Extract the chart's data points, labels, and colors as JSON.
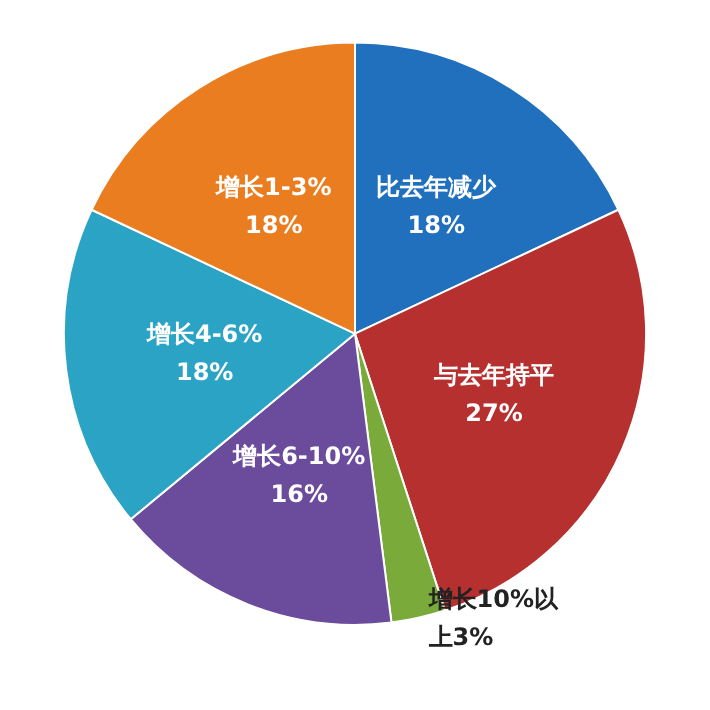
{
  "chart_data": {
    "type": "pie",
    "categories": [
      "比去年减少",
      "与去年持平",
      "增长10%以上",
      "增长6-10%",
      "增长4-6%",
      "增长1-3%"
    ],
    "values": [
      18,
      27,
      3,
      16,
      18,
      18
    ],
    "colors": [
      "#2170bd",
      "#b5302f",
      "#7aab3a",
      "#6b4b9b",
      "#2ba3c4",
      "#ea7d1f"
    ],
    "value_labels": [
      "18%",
      "27%",
      "3%",
      "16%",
      "18%",
      "18%"
    ]
  }
}
